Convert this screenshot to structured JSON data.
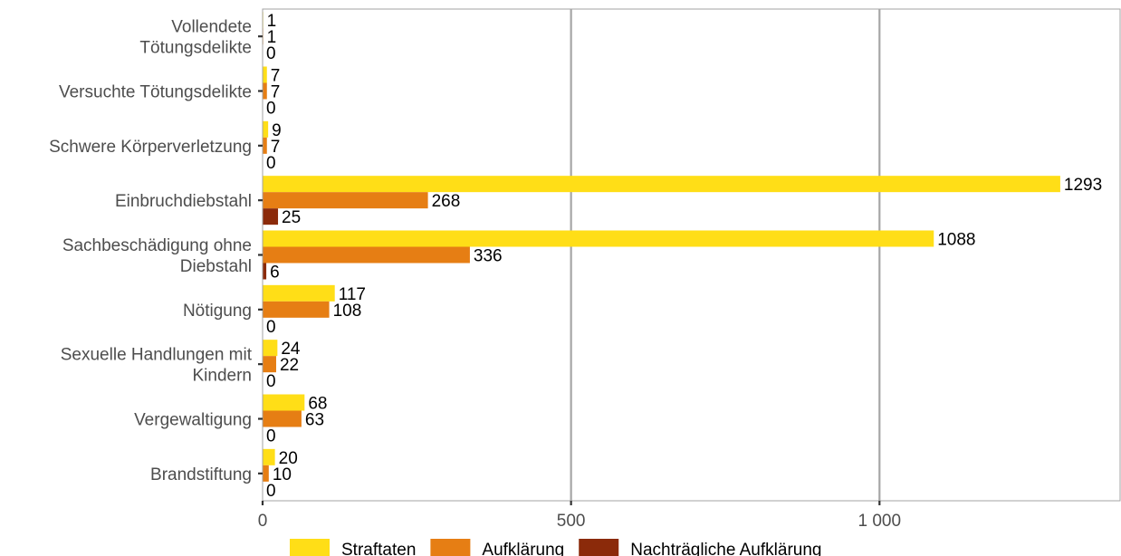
{
  "chart_data": {
    "type": "bar",
    "orientation": "horizontal",
    "categories": [
      [
        "Vollendete",
        "Tötungsdelikte"
      ],
      [
        "Versuchte Tötungsdelikte"
      ],
      [
        "Schwere Körperverletzung"
      ],
      [
        "Einbruchdiebstahl"
      ],
      [
        "Sachbeschädigung ohne",
        "Diebstahl"
      ],
      [
        "Nötigung"
      ],
      [
        "Sexuelle Handlungen mit",
        "Kindern"
      ],
      [
        "Vergewaltigung"
      ],
      [
        "Brandstiftung"
      ]
    ],
    "series": [
      {
        "name": "Straftaten",
        "color": "#FFDE17",
        "values": [
          1,
          7,
          9,
          1293,
          1088,
          117,
          24,
          68,
          20
        ]
      },
      {
        "name": "Aufklärung",
        "color": "#E67E14",
        "values": [
          1,
          7,
          7,
          268,
          336,
          108,
          22,
          63,
          10
        ]
      },
      {
        "name": "Nachträgliche Aufklärung",
        "color": "#8B2A0A",
        "values": [
          0,
          0,
          0,
          25,
          6,
          0,
          0,
          0,
          0
        ]
      }
    ],
    "x_ticks": [
      {
        "value": 0,
        "label": "0"
      },
      {
        "value": 500,
        "label": "500"
      },
      {
        "value": 1000,
        "label": "1 000"
      }
    ],
    "xlim": [
      0,
      1390
    ],
    "grid": "vertical major gridlines",
    "legend_position": "bottom",
    "title": "",
    "xlabel": "",
    "ylabel": ""
  }
}
